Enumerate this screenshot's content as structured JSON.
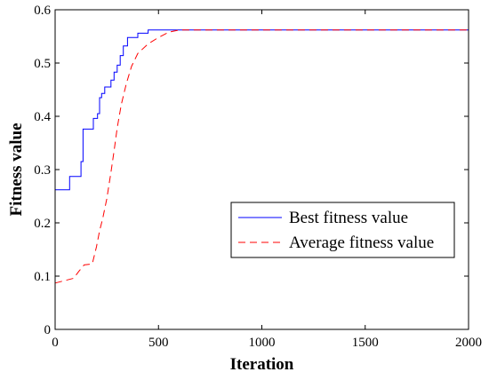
{
  "chart_data": {
    "type": "line",
    "title": "",
    "xlabel": "Iteration",
    "ylabel": "Fitness value",
    "xlim": [
      0,
      2000
    ],
    "ylim": [
      0,
      0.6
    ],
    "xticks": [
      0,
      500,
      1000,
      1500,
      2000
    ],
    "xtick_labels": [
      "0",
      "500",
      "1000",
      "1500",
      "2000"
    ],
    "yticks": [
      0,
      0.1,
      0.2,
      0.3,
      0.4,
      0.5,
      0.6
    ],
    "ytick_labels": [
      "0",
      "0.1",
      "0.2",
      "0.3",
      "0.4",
      "0.5",
      "0.6"
    ],
    "grid": false,
    "legend_position": "center-right",
    "series": [
      {
        "name": "Best fitness value",
        "color": "#0000ff",
        "line_style": "solid",
        "step": true,
        "x": [
          0,
          70,
          125,
          135,
          185,
          205,
          215,
          225,
          240,
          270,
          285,
          300,
          315,
          330,
          350,
          400,
          450,
          2000
        ],
        "y": [
          0.262,
          0.287,
          0.315,
          0.376,
          0.396,
          0.405,
          0.435,
          0.443,
          0.455,
          0.468,
          0.483,
          0.496,
          0.514,
          0.532,
          0.548,
          0.556,
          0.562,
          0.562
        ]
      },
      {
        "name": "Average fitness value",
        "color": "#ff0000",
        "line_style": "dashed",
        "step": false,
        "x": [
          0,
          40,
          90,
          115,
          140,
          180,
          200,
          215,
          230,
          250,
          270,
          285,
          300,
          320,
          345,
          370,
          400,
          450,
          500,
          550,
          600,
          2000
        ],
        "y": [
          0.087,
          0.091,
          0.096,
          0.109,
          0.121,
          0.123,
          0.155,
          0.185,
          0.208,
          0.245,
          0.295,
          0.335,
          0.378,
          0.422,
          0.462,
          0.494,
          0.518,
          0.536,
          0.548,
          0.558,
          0.562,
          0.562
        ]
      }
    ]
  }
}
